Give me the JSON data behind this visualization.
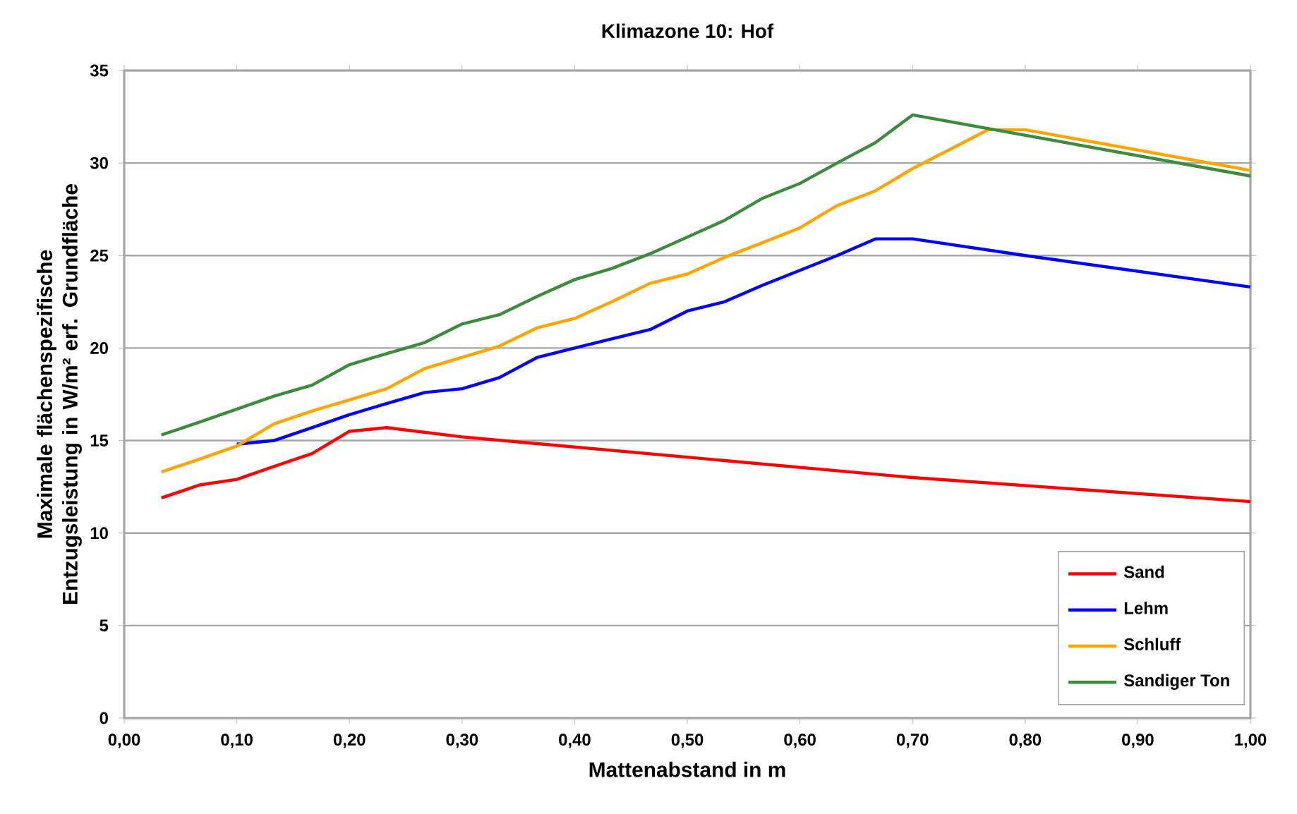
{
  "chart_data": {
    "type": "line",
    "title": "Klimazone 10: Hof",
    "xlabel": "Mattenabstand in m",
    "ylabel": "Maximale flächenspezifische Entzugsleistung in W/m² erf. Grundfläche",
    "series": [
      {
        "name": "Sand",
        "color": "#ff0000",
        "x": [
          0.033,
          0.067,
          0.1,
          0.133,
          0.167,
          0.2,
          0.233,
          0.3,
          0.7,
          1.0
        ],
        "values": [
          11.9,
          12.6,
          12.9,
          13.6,
          14.3,
          15.5,
          15.7,
          15.2,
          13.0,
          11.7
        ]
      },
      {
        "name": "Lehm",
        "color": "#0000ff",
        "x": [
          0.1,
          0.133,
          0.167,
          0.2,
          0.233,
          0.267,
          0.3,
          0.333,
          0.367,
          0.4,
          0.433,
          0.467,
          0.5,
          0.533,
          0.567,
          0.6,
          0.633,
          0.667,
          0.7,
          0.8,
          1.0
        ],
        "values": [
          14.8,
          15.0,
          15.7,
          16.4,
          17.0,
          17.6,
          17.8,
          18.4,
          19.5,
          20.0,
          20.5,
          21.0,
          22.0,
          22.5,
          23.4,
          24.2,
          25.0,
          25.9,
          25.9,
          25.0,
          23.3
        ]
      },
      {
        "name": "Schluff",
        "color": "#ffa500",
        "x": [
          0.033,
          0.067,
          0.1,
          0.133,
          0.167,
          0.2,
          0.233,
          0.267,
          0.3,
          0.333,
          0.367,
          0.4,
          0.433,
          0.467,
          0.5,
          0.533,
          0.567,
          0.6,
          0.633,
          0.667,
          0.7,
          0.767,
          0.8,
          1.0
        ],
        "values": [
          13.3,
          14.0,
          14.7,
          15.9,
          16.6,
          17.2,
          17.8,
          18.9,
          19.5,
          20.1,
          21.1,
          21.6,
          22.5,
          23.5,
          24.0,
          24.9,
          25.7,
          26.5,
          27.7,
          28.5,
          29.7,
          31.8,
          31.8,
          29.6
        ]
      },
      {
        "name": "Sandiger Ton",
        "color": "#3d8b3d",
        "x": [
          0.033,
          0.067,
          0.1,
          0.133,
          0.167,
          0.2,
          0.233,
          0.267,
          0.3,
          0.333,
          0.367,
          0.4,
          0.433,
          0.467,
          0.5,
          0.533,
          0.567,
          0.6,
          0.633,
          0.667,
          0.7,
          1.0
        ],
        "values": [
          15.3,
          16.0,
          16.7,
          17.4,
          18.0,
          19.1,
          19.7,
          20.3,
          21.3,
          21.8,
          22.8,
          23.7,
          24.3,
          25.1,
          26.0,
          26.9,
          28.1,
          28.9,
          30.0,
          31.1,
          32.6,
          29.3
        ]
      }
    ],
    "xlim": [
      0,
      1
    ],
    "ylim": [
      0,
      35
    ],
    "xticks": [
      {
        "value": 0,
        "label": "0,00"
      },
      {
        "value": 0.1,
        "label": "0,10"
      },
      {
        "value": 0.2,
        "label": "0,20"
      },
      {
        "value": 0.3,
        "label": "0,30"
      },
      {
        "value": 0.4,
        "label": "0,40"
      },
      {
        "value": 0.5,
        "label": "0,50"
      },
      {
        "value": 0.6,
        "label": "0,60"
      },
      {
        "value": 0.7,
        "label": "0,70"
      },
      {
        "value": 0.8,
        "label": "0,80"
      },
      {
        "value": 0.9,
        "label": "0,90"
      },
      {
        "value": 1,
        "label": "1,00"
      }
    ],
    "yticks": [
      0,
      5,
      10,
      15,
      20,
      25,
      30,
      35
    ],
    "grid": "y",
    "legend": "bottom right",
    "marker": "none",
    "line_style": "solid"
  }
}
